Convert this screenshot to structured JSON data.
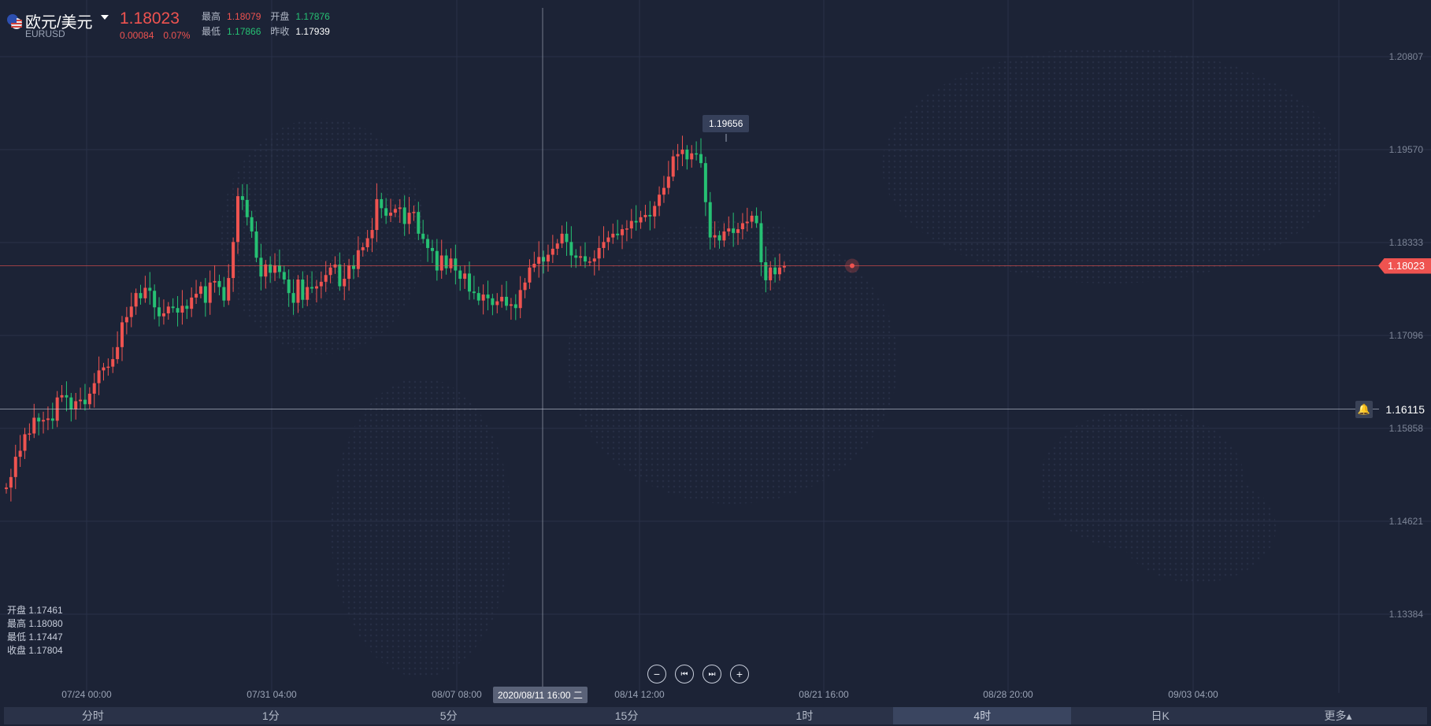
{
  "header": {
    "pair_name": "欧元/美元",
    "pair_code": "EURUSD",
    "last_price": "1.18023",
    "change": "0.00084",
    "change_pct": "0.07%",
    "high_label": "最高",
    "high_value": "1.18079",
    "open_label": "开盘",
    "open_value": "1.17876",
    "low_label": "最低",
    "low_value": "1.17866",
    "prev_close_label": "昨收",
    "prev_close_value": "1.17939",
    "flag_icon": "us-eu-flag-icon"
  },
  "ohlc_readout": {
    "open": "开盘 1.17461",
    "high": "最高 1.18080",
    "low": "最低 1.17447",
    "close": "收盘 1.17804"
  },
  "chart_data": {
    "type": "candlestick",
    "y_ticks": [
      "1.20807",
      "1.19570",
      "1.18333",
      "1.17096",
      "1.15858",
      "1.14621",
      "1.13384"
    ],
    "x_ticks": [
      "07/24 00:00",
      "07/31 04:00",
      "08/07 08:00",
      "08/14 12:00",
      "08/21 16:00",
      "08/28 20:00",
      "09/03 04:00"
    ],
    "high_marker": "1.19656",
    "last_price": "1.18023",
    "alert_price": "1.16115",
    "crosshair_date": "2020/08/11 16:00 二",
    "ylim": [
      1.1239,
      1.2167
    ],
    "closes": [
      1.1507,
      1.1521,
      1.1548,
      1.1556,
      1.1578,
      1.1579,
      1.16,
      1.1595,
      1.1597,
      1.1599,
      1.1596,
      1.1627,
      1.163,
      1.1627,
      1.1611,
      1.1622,
      1.1624,
      1.1618,
      1.1632,
      1.1646,
      1.1663,
      1.1667,
      1.1668,
      1.1678,
      1.1694,
      1.1727,
      1.1734,
      1.1748,
      1.1766,
      1.1759,
      1.1773,
      1.1769,
      1.1747,
      1.1735,
      1.1739,
      1.1748,
      1.1746,
      1.174,
      1.1749,
      1.1745,
      1.176,
      1.1765,
      1.1775,
      1.1753,
      1.178,
      1.1782,
      1.1774,
      1.1756,
      1.1786,
      1.1834,
      1.1895,
      1.189,
      1.1867,
      1.1848,
      1.1813,
      1.1788,
      1.1804,
      1.1793,
      1.1803,
      1.1794,
      1.1784,
      1.1766,
      1.1753,
      1.1784,
      1.1757,
      1.1774,
      1.1772,
      1.1775,
      1.1781,
      1.179,
      1.18,
      1.1804,
      1.1775,
      1.1785,
      1.1803,
      1.1798,
      1.1823,
      1.1827,
      1.1839,
      1.185,
      1.1891,
      1.1879,
      1.1869,
      1.1873,
      1.1878,
      1.188,
      1.1858,
      1.1873,
      1.1874,
      1.1845,
      1.1838,
      1.1826,
      1.1822,
      1.1796,
      1.1816,
      1.1799,
      1.1812,
      1.1796,
      1.1785,
      1.1792,
      1.1768,
      1.1766,
      1.1756,
      1.1764,
      1.1759,
      1.175,
      1.1755,
      1.1761,
      1.1749,
      1.1751,
      1.1746,
      1.177,
      1.178,
      1.18,
      1.1805,
      1.1814,
      1.1808,
      1.1817,
      1.1825,
      1.1832,
      1.1845,
      1.1834,
      1.1816,
      1.1813,
      1.1815,
      1.1808,
      1.1808,
      1.1812,
      1.1826,
      1.1834,
      1.184,
      1.1845,
      1.1843,
      1.1851,
      1.1852,
      1.1862,
      1.186,
      1.1867,
      1.187,
      1.1868,
      1.1882,
      1.1897,
      1.1906,
      1.1921,
      1.1948,
      1.1951,
      1.1957,
      1.1944,
      1.1952,
      1.1951,
      1.1939,
      1.1887,
      1.184,
      1.1843,
      1.1836,
      1.1848,
      1.1852,
      1.1846,
      1.1851,
      1.1859,
      1.1861,
      1.1869,
      1.1859,
      1.1807,
      1.1783,
      1.18,
      1.1791,
      1.18,
      1.1802
    ]
  },
  "controls": {
    "zoom_out": "−",
    "prev": "⏮",
    "next": "⏭",
    "zoom_in": "+"
  },
  "tabs": [
    {
      "label": "分时"
    },
    {
      "label": "1分"
    },
    {
      "label": "5分"
    },
    {
      "label": "15分"
    },
    {
      "label": "1时"
    },
    {
      "label": "4时"
    },
    {
      "label": "日K"
    },
    {
      "label": "更多▴"
    }
  ],
  "active_tab": "4时",
  "colors": {
    "up": "#ef5350",
    "down": "#26c073",
    "background": "#1c2336",
    "grid": "#2a3248"
  }
}
